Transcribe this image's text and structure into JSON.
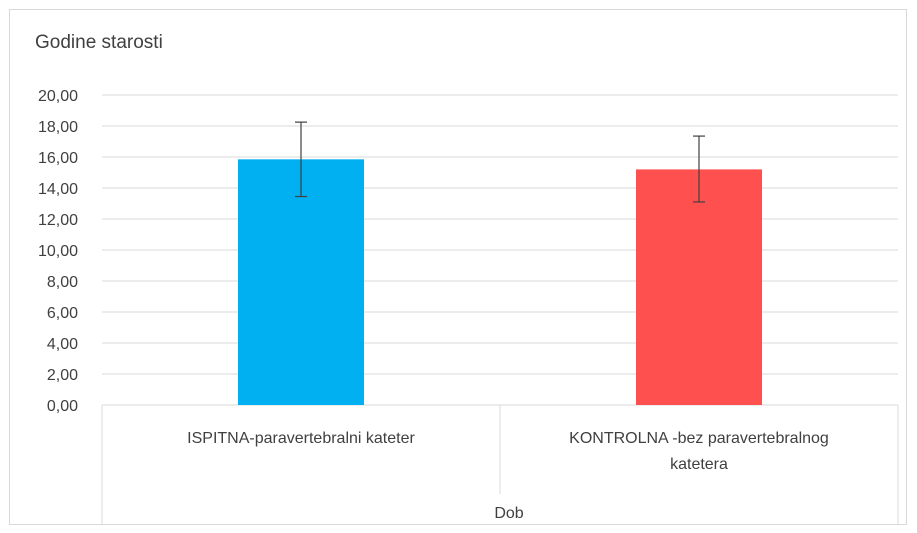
{
  "chart_data": {
    "type": "bar",
    "title": "Godine starosti",
    "xlabel": "Dob",
    "ylabel": "",
    "ylim": [
      0,
      20
    ],
    "y_tick_labels": [
      "0,00",
      "2,00",
      "4,00",
      "6,00",
      "8,00",
      "10,00",
      "12,00",
      "14,00",
      "16,00",
      "18,00",
      "20,00"
    ],
    "categories": [
      [
        "ISPITNA-paravertebralni kateter"
      ],
      [
        "KONTROLNA -bez paravertebralnog",
        "katetera"
      ]
    ],
    "values": [
      15.85,
      15.2
    ],
    "error_bars": [
      {
        "low": 13.45,
        "high": 18.25
      },
      {
        "low": 13.1,
        "high": 17.35
      }
    ],
    "colors": [
      "#00b0f0",
      "#ff5050"
    ],
    "grid": true
  }
}
